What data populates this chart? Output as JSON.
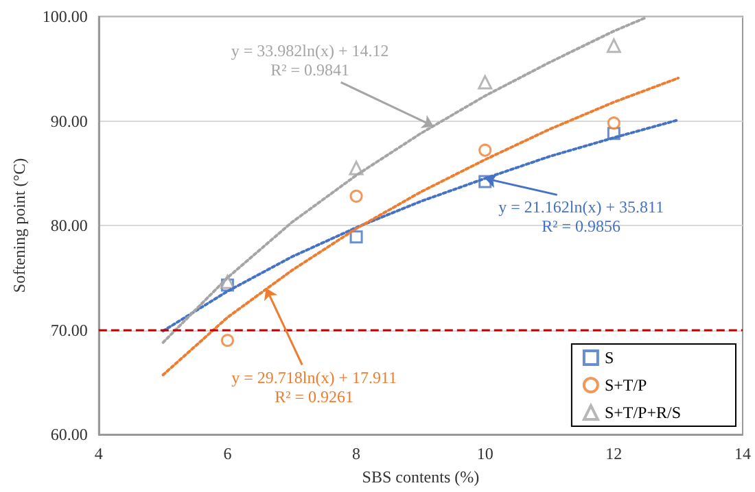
{
  "chart_data": {
    "type": "scatter",
    "xlabel": "SBS contents (%)",
    "ylabel": "Softening point (°C)",
    "xlim": [
      4,
      14
    ],
    "xticks": [
      4,
      6,
      8,
      10,
      12,
      14
    ],
    "ylim": [
      60,
      100
    ],
    "yticks": [
      {
        "value": 60,
        "label": "60.00"
      },
      {
        "value": 70,
        "label": "70.00"
      },
      {
        "value": 80,
        "label": "80.00"
      },
      {
        "value": 90,
        "label": "90.00"
      },
      {
        "value": 100,
        "label": "100.00"
      }
    ],
    "grid": "y",
    "legend": "bottom right",
    "series": [
      {
        "name": "S",
        "color": "#4472c4",
        "marker": "square",
        "x": [
          6,
          8,
          10,
          12
        ],
        "values": [
          74.3,
          78.9,
          84.2,
          88.8
        ]
      },
      {
        "name": "S+T/P",
        "color": "#ed7d31",
        "marker": "circle",
        "x": [
          6,
          8,
          10,
          12
        ],
        "values": [
          69.0,
          82.8,
          87.2,
          89.8
        ]
      },
      {
        "name": "S+T/P+R/S",
        "color": "#a5a5a5",
        "marker": "triangle",
        "x": [
          6,
          8,
          10,
          12
        ],
        "values": [
          74.6,
          85.5,
          93.7,
          97.2
        ]
      },
      {
        "type": "line",
        "color": "#4472c4",
        "line_style": "dotted",
        "marker": "none",
        "x": [
          5,
          6,
          7,
          8,
          9,
          10,
          11,
          12,
          13
        ],
        "values": [
          69.9,
          73.7,
          77.0,
          79.8,
          82.3,
          84.5,
          86.6,
          88.4,
          90.1
        ]
      },
      {
        "type": "line",
        "color": "#ed7d31",
        "line_style": "dotted",
        "marker": "none",
        "x": [
          5,
          6,
          7,
          8,
          9,
          10,
          11,
          12,
          13
        ],
        "values": [
          65.7,
          71.2,
          75.7,
          79.7,
          83.2,
          86.3,
          89.2,
          91.8,
          94.1
        ]
      },
      {
        "type": "line",
        "color": "#a5a5a5",
        "line_style": "dotted",
        "marker": "none",
        "x": [
          5,
          6,
          7,
          8,
          9,
          10,
          11,
          12,
          12.5
        ],
        "values": [
          68.8,
          75.0,
          80.3,
          84.8,
          88.8,
          92.4,
          95.6,
          98.6,
          99.9
        ]
      }
    ],
    "ref_lines": [
      {
        "axis": "y",
        "value": 70,
        "color": "#c00000",
        "line_style": "dashed"
      }
    ],
    "annotations": [
      {
        "text": "y = 33.982ln(x) + 14.12\nR² = 0.9841",
        "x": 9.2,
        "y": 89.5
      },
      {
        "text": "y = 21.162ln(x) + 35.811\nR² = 0.9856",
        "x": 10,
        "y": 84.5
      },
      {
        "text": "y = 29.718ln(x) + 17.911\nR² = 0.9261",
        "x": 6.6,
        "y": 74.0
      }
    ]
  }
}
